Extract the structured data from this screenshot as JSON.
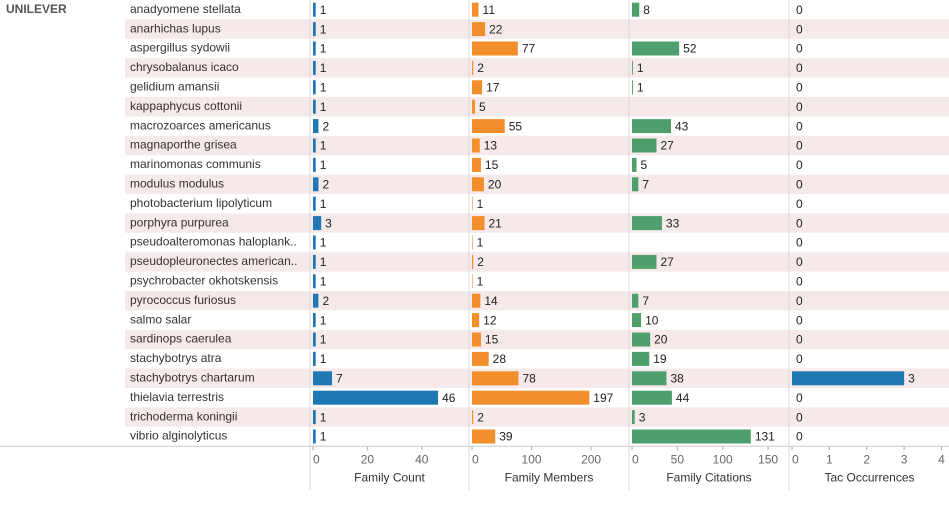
{
  "chart_data": {
    "type": "bar",
    "orientation": "horizontal",
    "row_header": "UNILEVER",
    "categories": [
      "anadyomene stellata",
      "anarhichas lupus",
      "aspergillus sydowii",
      "chrysobalanus icaco",
      "gelidium amansii",
      "kappaphycus cottonii",
      "macrozoarces americanus",
      "magnaporthe grisea",
      "marinomonas communis",
      "modulus modulus",
      "photobacterium lipolyticum",
      "porphyra purpurea",
      "pseudoalteromonas haloplank..",
      "pseudopleuronectes american..",
      "psychrobacter okhotskensis",
      "pyrococcus furiosus",
      "salmo salar",
      "sardinops caerulea",
      "stachybotrys atra",
      "stachybotrys chartarum",
      "thielavia terrestris",
      "trichoderma koningii",
      "vibrio alginolyticus"
    ],
    "series": [
      {
        "name": "Family Count",
        "color": "#1f77b4",
        "xlim": [
          0,
          57
        ],
        "xticks": [
          0,
          20,
          40
        ],
        "values": [
          1,
          1,
          1,
          1,
          1,
          1,
          2,
          1,
          1,
          2,
          1,
          3,
          1,
          1,
          1,
          2,
          1,
          1,
          1,
          7,
          46,
          1,
          1
        ]
      },
      {
        "name": "Family Members",
        "color": "#f28e2b",
        "xlim": [
          0,
          262
        ],
        "xticks": [
          0,
          100,
          200
        ],
        "values": [
          11,
          22,
          77,
          2,
          17,
          5,
          55,
          13,
          15,
          20,
          1,
          21,
          1,
          2,
          1,
          14,
          12,
          15,
          28,
          78,
          197,
          2,
          39
        ]
      },
      {
        "name": "Family Citations",
        "color": "#4e9f6b",
        "xlim": [
          0,
          172
        ],
        "xticks": [
          0,
          50,
          100,
          150
        ],
        "values": [
          8,
          null,
          52,
          1,
          1,
          null,
          43,
          27,
          5,
          7,
          null,
          33,
          null,
          27,
          null,
          7,
          10,
          20,
          19,
          38,
          44,
          3,
          131
        ]
      },
      {
        "name": "Tac Occurrences",
        "color": "#1f77b4",
        "xlim": [
          0,
          4.2
        ],
        "xticks": [
          0,
          1,
          2,
          3,
          4
        ],
        "values": [
          0,
          0,
          0,
          0,
          0,
          0,
          0,
          0,
          0,
          0,
          0,
          0,
          0,
          0,
          0,
          0,
          0,
          0,
          0,
          3,
          0,
          0,
          0
        ]
      }
    ]
  }
}
